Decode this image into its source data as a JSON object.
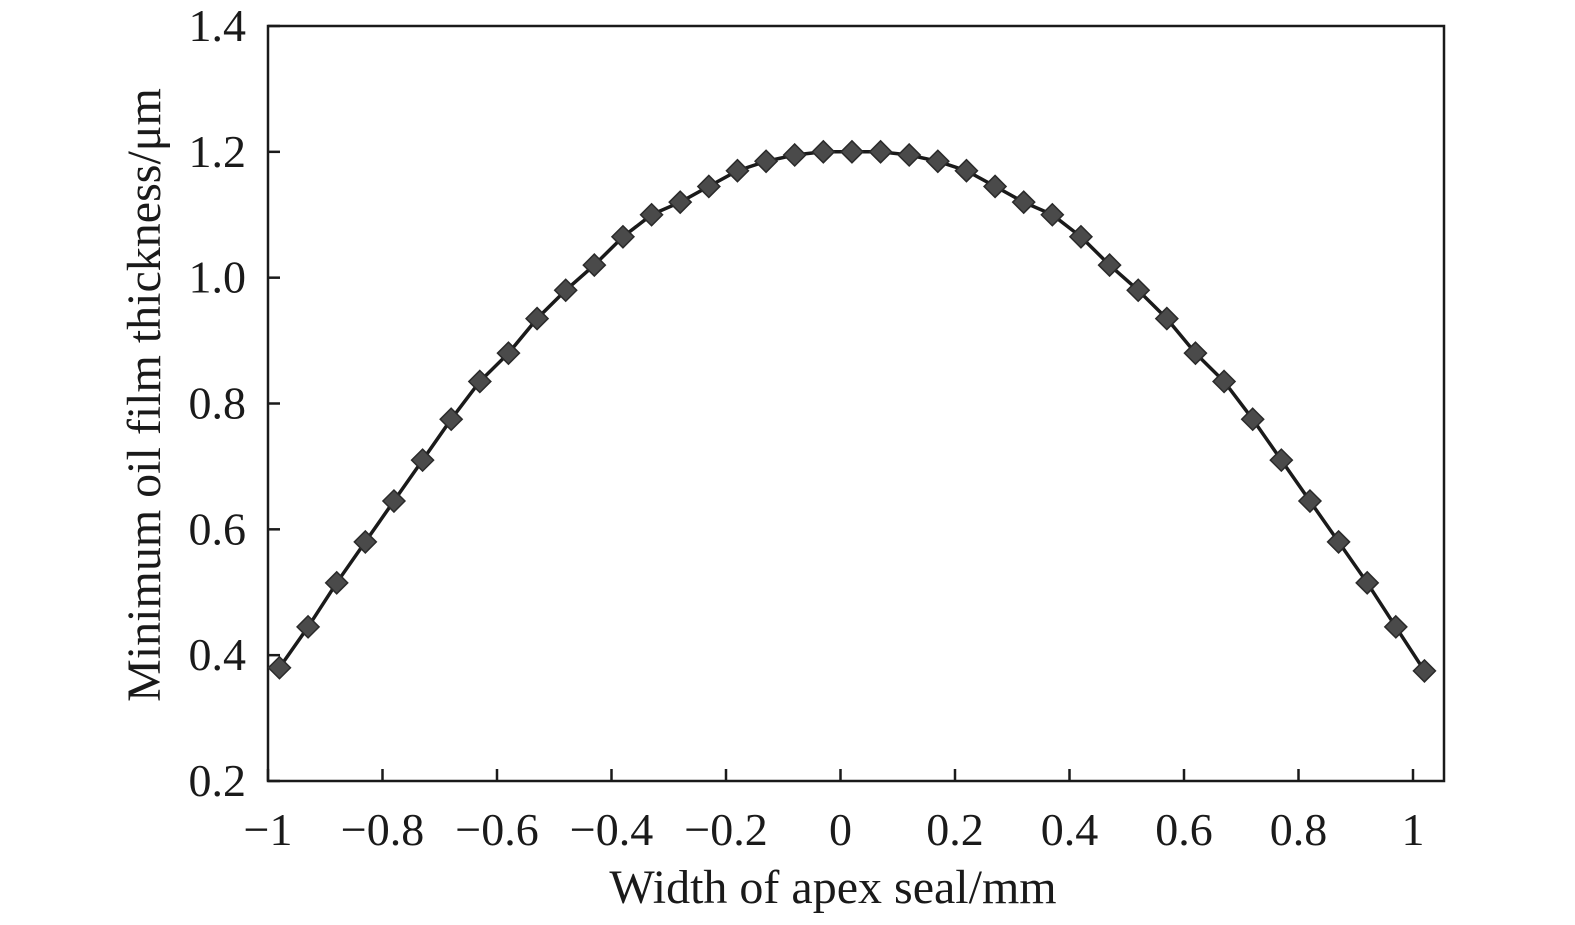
{
  "chart_data": {
    "type": "line",
    "title": "",
    "xlabel": "Width of apex seal/mm",
    "ylabel": "Minimum oil film thickness/μm",
    "xlim": [
      -1.0,
      1.05
    ],
    "ylim": [
      0.2,
      1.4
    ],
    "x_ticks": [
      -1,
      -0.8,
      -0.6,
      -0.4,
      -0.2,
      0,
      0.2,
      0.4,
      0.6,
      0.8,
      1
    ],
    "x_tick_labels": [
      "−1",
      "−0.8",
      "−0.6",
      "−0.4",
      "−0.2",
      "0",
      "0.2",
      "0.4",
      "0.6",
      "0.8",
      "1"
    ],
    "y_ticks": [
      0.2,
      0.4,
      0.6,
      0.8,
      1.0,
      1.2,
      1.4
    ],
    "y_tick_labels": [
      "0.2",
      "0.4",
      "0.6",
      "0.8",
      "1.0",
      "1.2",
      "1.4"
    ],
    "grid": false,
    "legend": "none",
    "marker": "diamond",
    "colors": {
      "line": "#1a1a1a",
      "marker": "#4a4a4a",
      "axis": "#1a1a1a"
    },
    "series": [
      {
        "x": [
          -0.98,
          -0.93,
          -0.88,
          -0.83,
          -0.78,
          -0.73,
          -0.68,
          -0.63,
          -0.58,
          -0.53,
          -0.48,
          -0.43,
          -0.38,
          -0.33,
          -0.28,
          -0.23,
          -0.18,
          -0.13,
          -0.08,
          -0.03,
          0.02,
          0.07,
          0.12,
          0.17,
          0.22,
          0.27,
          0.32,
          0.37,
          0.42,
          0.47,
          0.52,
          0.57,
          0.62,
          0.67,
          0.72,
          0.77,
          0.82,
          0.87,
          0.92,
          0.97,
          1.02
        ],
        "y": [
          0.38,
          0.445,
          0.515,
          0.58,
          0.645,
          0.71,
          0.775,
          0.835,
          0.88,
          0.935,
          0.98,
          1.02,
          1.065,
          1.1,
          1.12,
          1.145,
          1.17,
          1.185,
          1.195,
          1.2,
          1.2,
          1.2,
          1.195,
          1.185,
          1.17,
          1.145,
          1.12,
          1.1,
          1.065,
          1.02,
          0.98,
          0.935,
          0.88,
          0.835,
          0.775,
          0.71,
          0.645,
          0.58,
          0.515,
          0.445,
          0.375
        ]
      }
    ]
  }
}
